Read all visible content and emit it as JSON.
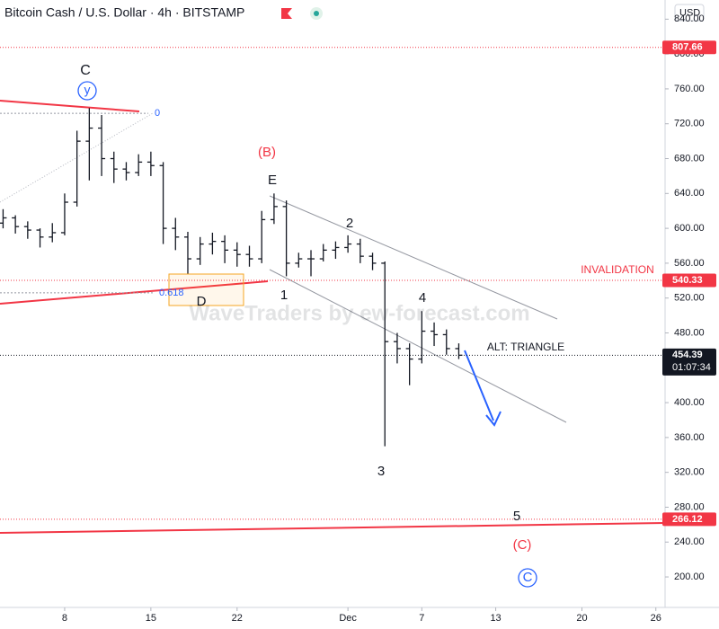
{
  "chart_data": {
    "type": "ohlc",
    "title": "Bitcoin Cash / U.S. Dollar · 4h · BITSTAMP",
    "currency": "USD",
    "watermark": "WaveTraders by ew-forecast.com",
    "color": "#131722",
    "x": [
      3,
      4,
      5,
      6,
      7,
      8,
      9,
      10,
      11,
      12,
      13,
      14,
      15,
      16,
      17,
      18,
      19,
      20,
      21,
      22,
      23,
      24,
      25,
      26,
      27,
      28,
      29,
      30,
      31,
      32,
      33,
      34,
      35,
      36,
      37,
      38,
      39,
      40
    ],
    "open": [
      606,
      612,
      602,
      598,
      590,
      595,
      630,
      700,
      715,
      680,
      668,
      664,
      676,
      672,
      600,
      590,
      565,
      582,
      585,
      575,
      570,
      565,
      610,
      625,
      560,
      565,
      565,
      575,
      578,
      582,
      568,
      560,
      470,
      462,
      450,
      482,
      478,
      462
    ],
    "high": [
      622,
      615,
      608,
      600,
      606,
      640,
      712,
      738,
      730,
      688,
      676,
      685,
      688,
      676,
      612,
      596,
      590,
      595,
      592,
      584,
      580,
      620,
      640,
      632,
      572,
      575,
      582,
      585,
      592,
      588,
      572,
      562,
      480,
      468,
      505,
      492,
      484,
      468
    ],
    "low": [
      600,
      594,
      588,
      578,
      584,
      592,
      625,
      655,
      660,
      652,
      655,
      660,
      660,
      582,
      575,
      548,
      558,
      570,
      560,
      556,
      556,
      560,
      605,
      545,
      555,
      545,
      562,
      565,
      572,
      560,
      552,
      350,
      445,
      420,
      445,
      465,
      455,
      450
    ],
    "close": [
      612,
      602,
      598,
      590,
      595,
      630,
      700,
      715,
      680,
      668,
      664,
      676,
      672,
      600,
      590,
      565,
      582,
      585,
      575,
      570,
      565,
      610,
      625,
      560,
      565,
      565,
      575,
      578,
      582,
      568,
      560,
      470,
      462,
      450,
      482,
      478,
      462,
      454.39
    ],
    "xlim": [
      2.75,
      56.75
    ],
    "xticks": [
      8,
      15,
      22,
      {
        "value": 31,
        "label": "Dec"
      },
      {
        "value": 37,
        "label": "7"
      },
      {
        "value": 43,
        "label": "13"
      },
      {
        "value": 50,
        "label": "20"
      },
      {
        "value": 56,
        "label": "26"
      }
    ],
    "ylim": [
      165,
      862
    ],
    "yticks": [
      {
        "value": 200,
        "label": "200.00"
      },
      {
        "value": 240,
        "label": "240.00"
      },
      {
        "value": 280,
        "label": "280.00"
      },
      {
        "value": 320,
        "label": "320.00"
      },
      {
        "value": 360,
        "label": "360.00"
      },
      {
        "value": 400,
        "label": "400.00"
      },
      {
        "value": 440,
        "label": "440.00"
      },
      {
        "value": 480,
        "label": "480.00"
      },
      {
        "value": 520,
        "label": "520.00"
      },
      {
        "value": 560,
        "label": "560.00"
      },
      {
        "value": 600,
        "label": "600.00"
      },
      {
        "value": 640,
        "label": "640.00"
      },
      {
        "value": 680,
        "label": "680.00"
      },
      {
        "value": 720,
        "label": "720.00"
      },
      {
        "value": 760,
        "label": "760.00"
      },
      {
        "value": 800,
        "label": "800.00"
      },
      {
        "value": 840,
        "label": "840.00"
      }
    ],
    "levels": [
      {
        "value": 807.66,
        "color": "#f23645"
      },
      {
        "value": 540.33,
        "color": "#f23645"
      },
      {
        "value": 454.39,
        "color": "#131722",
        "countdown": "01:07:34"
      },
      {
        "value": 266.12,
        "color": "#f23645"
      }
    ],
    "fib_levels": [
      {
        "value": 732,
        "label": "0"
      },
      {
        "value": 526,
        "label": "0.618"
      }
    ],
    "annotations": [
      "C",
      "y",
      "(B)",
      "E",
      "1",
      "2",
      "3",
      "4",
      "5",
      "(C)",
      "C",
      "D",
      "ALT: TRIANGLE",
      "INVALIDATION"
    ]
  }
}
